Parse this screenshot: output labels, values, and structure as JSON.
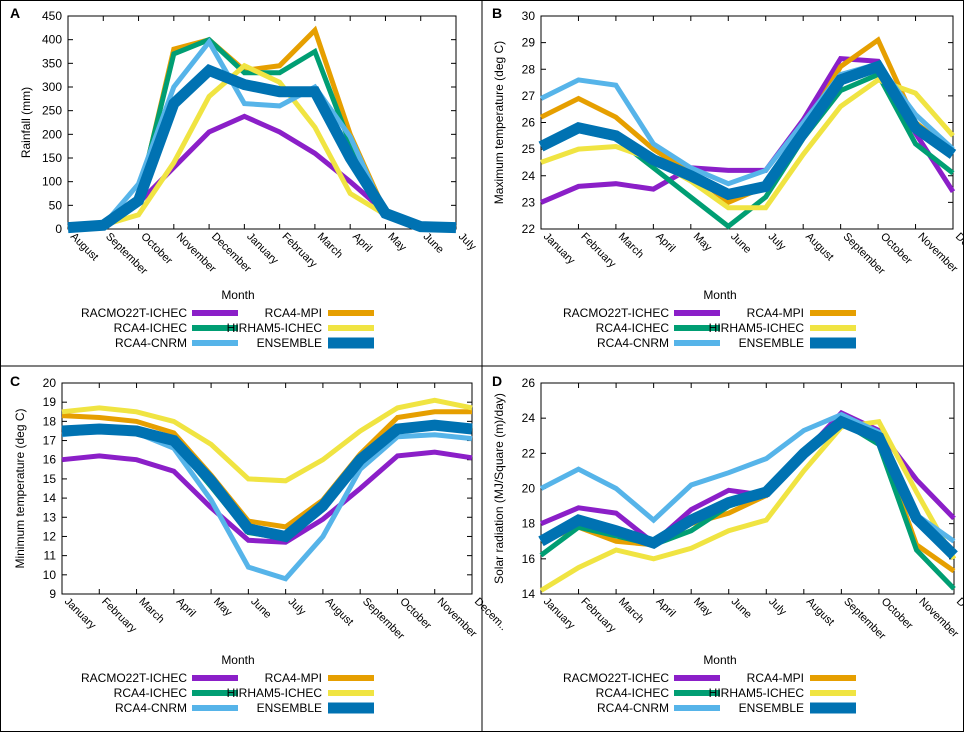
{
  "figure": {
    "border_color": "#000000"
  },
  "legend_title": "Month",
  "series_styles": [
    {
      "name": "RACMO22T-ICHEC",
      "color": "#8B1FC8",
      "width": 5
    },
    {
      "name": "RCA4-MPI",
      "color": "#E69F00",
      "width": 5
    },
    {
      "name": "RCA4-ICHEC",
      "color": "#009E73",
      "width": 5
    },
    {
      "name": "HIRHAM5-ICHEC",
      "color": "#F0E442",
      "width": 5
    },
    {
      "name": "RCA4-CNRM",
      "color": "#56B4E9",
      "width": 5
    },
    {
      "name": "ENSEMBLE",
      "color": "#0072B2",
      "width": 11
    }
  ],
  "chart_data": [
    {
      "panel_label": "A",
      "type": "line",
      "ylabel": "Rainfall (mm)",
      "xlabel": "Month",
      "ylim": [
        0,
        450
      ],
      "yticks": [
        0,
        50,
        100,
        150,
        200,
        250,
        300,
        350,
        400,
        450
      ],
      "categories": [
        "August",
        "September",
        "October",
        "November",
        "December",
        "January",
        "February",
        "March",
        "April",
        "May",
        "June",
        "July"
      ],
      "tick_labels": [
        "August",
        "September",
        "October",
        "November",
        "December",
        "January",
        "February",
        "March",
        "April",
        "May",
        "June",
        "July"
      ],
      "series": [
        {
          "name": "RACMO22T-ICHEC",
          "values": [
            3,
            8,
            55,
            130,
            205,
            238,
            205,
            160,
            100,
            35,
            5,
            3
          ]
        },
        {
          "name": "RCA4-MPI",
          "values": [
            3,
            8,
            60,
            380,
            400,
            335,
            345,
            420,
            200,
            35,
            5,
            3
          ]
        },
        {
          "name": "RCA4-ICHEC",
          "values": [
            3,
            8,
            65,
            370,
            400,
            330,
            330,
            375,
            180,
            33,
            5,
            3
          ]
        },
        {
          "name": "HIRHAM5-ICHEC",
          "values": [
            3,
            8,
            30,
            140,
            280,
            345,
            310,
            215,
            75,
            30,
            5,
            3
          ]
        },
        {
          "name": "RCA4-CNRM",
          "values": [
            3,
            8,
            95,
            300,
            395,
            265,
            260,
            300,
            195,
            30,
            5,
            3
          ]
        },
        {
          "name": "ENSEMBLE",
          "values": [
            3,
            8,
            60,
            265,
            335,
            305,
            290,
            290,
            150,
            33,
            5,
            3
          ]
        }
      ]
    },
    {
      "panel_label": "B",
      "type": "line",
      "ylabel": "Maximum temperature (deg C)",
      "xlabel": "Month",
      "ylim": [
        22,
        30
      ],
      "yticks": [
        22,
        23,
        24,
        25,
        26,
        27,
        28,
        29,
        30
      ],
      "categories": [
        "January",
        "February",
        "March",
        "April",
        "May",
        "June",
        "July",
        "August",
        "September",
        "October",
        "November",
        "December"
      ],
      "tick_labels": [
        "January",
        "February",
        "March",
        "April",
        "May",
        "June",
        "July",
        "August",
        "September",
        "October",
        "November",
        "Decem.."
      ],
      "series": [
        {
          "name": "RACMO22T-ICHEC",
          "values": [
            23.0,
            23.6,
            23.7,
            23.5,
            24.3,
            24.2,
            24.2,
            26.1,
            28.4,
            28.3,
            25.6,
            23.4
          ]
        },
        {
          "name": "RCA4-MPI",
          "values": [
            26.2,
            26.9,
            26.2,
            25.0,
            24.1,
            23.0,
            23.6,
            25.7,
            28.1,
            29.1,
            26.0,
            24.9
          ]
        },
        {
          "name": "RCA4-ICHEC",
          "values": [
            25.2,
            25.7,
            25.4,
            24.3,
            23.2,
            22.1,
            23.2,
            25.4,
            27.2,
            27.8,
            25.2,
            24.1
          ]
        },
        {
          "name": "HIRHAM5-ICHEC",
          "values": [
            24.5,
            25.0,
            25.1,
            24.6,
            23.8,
            22.8,
            22.8,
            24.8,
            26.6,
            27.6,
            27.1,
            25.5
          ]
        },
        {
          "name": "RCA4-CNRM",
          "values": [
            26.9,
            27.6,
            27.4,
            25.2,
            24.3,
            23.7,
            24.2,
            26.0,
            27.8,
            28.2,
            26.3,
            25.0
          ]
        },
        {
          "name": "ENSEMBLE",
          "values": [
            25.1,
            25.8,
            25.5,
            24.6,
            24.0,
            23.3,
            23.6,
            25.6,
            27.6,
            28.1,
            25.8,
            24.8
          ]
        }
      ]
    },
    {
      "panel_label": "C",
      "type": "line",
      "ylabel": "Minimum temperature (deg C)",
      "xlabel": "Month",
      "ylim": [
        9,
        20
      ],
      "yticks": [
        9,
        10,
        11,
        12,
        13,
        14,
        15,
        16,
        17,
        18,
        19,
        20
      ],
      "categories": [
        "January",
        "February",
        "March",
        "April",
        "May",
        "June",
        "July",
        "August",
        "September",
        "October",
        "November",
        "December"
      ],
      "tick_labels": [
        "January",
        "February",
        "March",
        "April",
        "May",
        "June",
        "July",
        "August",
        "September",
        "October",
        "November",
        "Decem.."
      ],
      "series": [
        {
          "name": "RACMO22T-ICHEC",
          "values": [
            16.0,
            16.2,
            16.0,
            15.4,
            13.5,
            11.8,
            11.7,
            12.9,
            14.5,
            16.2,
            16.4,
            16.1
          ]
        },
        {
          "name": "RCA4-MPI",
          "values": [
            18.3,
            18.2,
            18.0,
            17.4,
            15.2,
            12.8,
            12.5,
            13.9,
            16.3,
            18.2,
            18.5,
            18.5
          ]
        },
        {
          "name": "RCA4-ICHEC",
          "values": [
            17.6,
            17.7,
            17.5,
            16.9,
            14.6,
            12.2,
            11.9,
            13.4,
            15.9,
            17.7,
            17.9,
            17.6
          ]
        },
        {
          "name": "HIRHAM5-ICHEC",
          "values": [
            18.5,
            18.7,
            18.5,
            18.0,
            16.8,
            15.0,
            14.9,
            16.0,
            17.5,
            18.7,
            19.1,
            18.7
          ]
        },
        {
          "name": "RCA4-CNRM",
          "values": [
            17.3,
            17.5,
            17.4,
            16.6,
            13.9,
            10.4,
            9.8,
            12.0,
            15.5,
            17.2,
            17.3,
            17.1
          ]
        },
        {
          "name": "ENSEMBLE",
          "values": [
            17.5,
            17.6,
            17.5,
            17.0,
            14.9,
            12.4,
            12.0,
            13.6,
            16.0,
            17.6,
            17.8,
            17.6
          ]
        }
      ]
    },
    {
      "panel_label": "D",
      "type": "line",
      "ylabel": "Solar radiation (MJ/Square (m)/day)",
      "xlabel": "Month",
      "ylim": [
        14,
        26
      ],
      "yticks": [
        14,
        16,
        18,
        20,
        22,
        24,
        26
      ],
      "categories": [
        "January",
        "February",
        "March",
        "April",
        "May",
        "June",
        "July",
        "August",
        "September",
        "October",
        "November",
        "December"
      ],
      "tick_labels": [
        "January",
        "February",
        "March",
        "April",
        "May",
        "June",
        "July",
        "August",
        "September",
        "October",
        "November",
        "Decem.."
      ],
      "series": [
        {
          "name": "RACMO22T-ICHEC",
          "values": [
            18.0,
            18.9,
            18.6,
            16.9,
            18.8,
            19.9,
            19.6,
            22.0,
            24.3,
            23.3,
            20.5,
            18.3
          ]
        },
        {
          "name": "RCA4-MPI",
          "values": [
            17.0,
            17.8,
            17.0,
            16.8,
            18.0,
            18.6,
            19.6,
            22.0,
            23.8,
            22.8,
            16.8,
            15.3
          ]
        },
        {
          "name": "RCA4-ICHEC",
          "values": [
            16.2,
            17.8,
            17.3,
            16.8,
            17.6,
            19.0,
            19.7,
            22.0,
            23.8,
            22.5,
            16.5,
            14.3
          ]
        },
        {
          "name": "HIRHAM5-ICHEC",
          "values": [
            14.2,
            15.5,
            16.5,
            16.0,
            16.6,
            17.6,
            18.2,
            21.0,
            23.5,
            23.8,
            19.8,
            16.0
          ]
        },
        {
          "name": "RCA4-CNRM",
          "values": [
            20.0,
            21.1,
            20.0,
            18.2,
            20.2,
            20.9,
            21.7,
            23.3,
            24.2,
            23.2,
            18.5,
            17.0
          ]
        },
        {
          "name": "ENSEMBLE",
          "values": [
            17.0,
            18.2,
            17.6,
            16.9,
            18.2,
            19.2,
            19.8,
            22.0,
            23.8,
            22.9,
            18.3,
            16.2
          ]
        }
      ]
    }
  ]
}
